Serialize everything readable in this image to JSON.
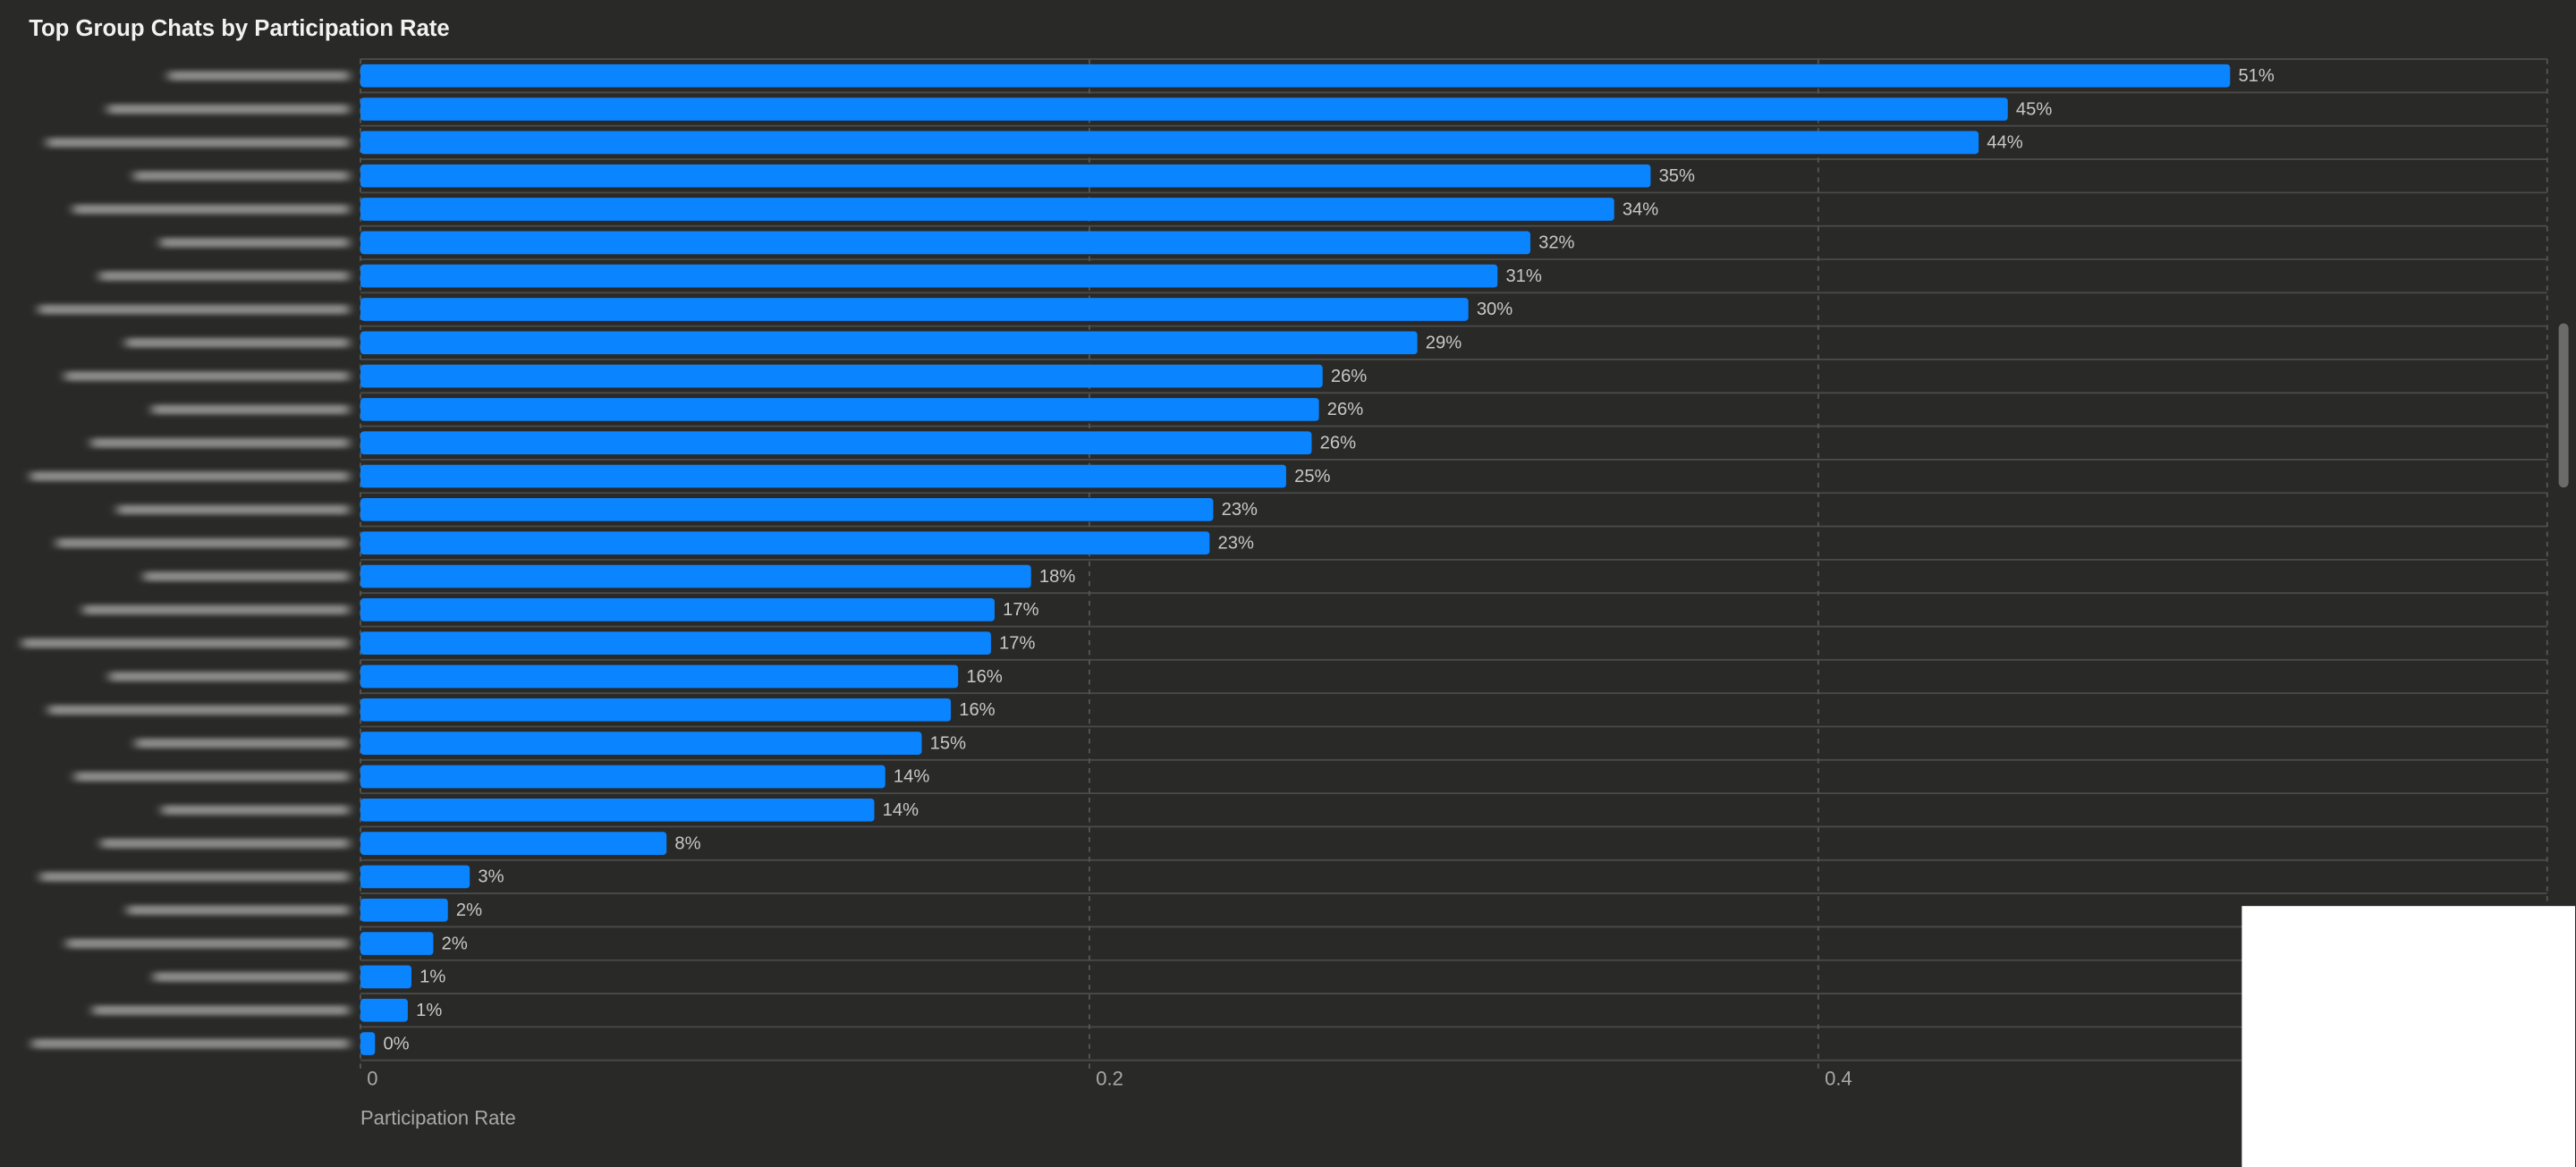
{
  "chart_data": {
    "type": "bar",
    "orientation": "horizontal",
    "title": "Top Group Chats by Participation Rate",
    "x_label": "Participation Rate",
    "categories": [
      null,
      null,
      null,
      null,
      null,
      null,
      null,
      null,
      null,
      null,
      null,
      null,
      null,
      null,
      null,
      null,
      null,
      null,
      null,
      null,
      null,
      null,
      null,
      null,
      null,
      null,
      null,
      null,
      null,
      null
    ],
    "values": [
      0.513,
      0.452,
      0.444,
      0.354,
      0.344,
      0.321,
      0.312,
      0.304,
      0.29,
      0.264,
      0.263,
      0.261,
      0.254,
      0.234,
      0.233,
      0.184,
      0.174,
      0.173,
      0.164,
      0.162,
      0.154,
      0.144,
      0.141,
      0.084,
      0.03,
      0.024,
      0.02,
      0.014,
      0.013,
      0.004
    ],
    "value_labels": [
      "51%",
      "45%",
      "44%",
      "35%",
      "34%",
      "32%",
      "31%",
      "30%",
      "29%",
      "26%",
      "26%",
      "26%",
      "25%",
      "23%",
      "23%",
      "18%",
      "17%",
      "17%",
      "16%",
      "16%",
      "15%",
      "14%",
      "14%",
      "8%",
      "3%",
      "2%",
      "2%",
      "1%",
      "1%",
      "0%"
    ],
    "color": "#0a84ff",
    "xlim": [
      0,
      0.6
    ],
    "xticks": [
      0,
      0.2,
      0.4
    ],
    "grid": true
  }
}
